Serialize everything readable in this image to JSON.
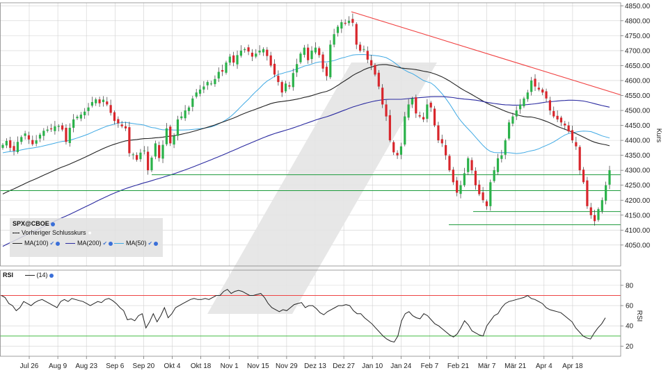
{
  "legend": {
    "symbol": "SPX@CBOE",
    "prev_close": "Vorheriger Schlusskurs",
    "ma100": "MA(100)",
    "ma200": "MA(200)",
    "ma50": "MA(50)",
    "rsi": "RSI",
    "rsi_period": "(14)"
  },
  "colors": {
    "up": "#2bb24a",
    "down": "#d8262c",
    "ma100": "#222222",
    "ma200": "#2a2aa0",
    "ma50": "#3fa9e4",
    "trend": "#f04040",
    "support": "#1a9a3a",
    "rsi_line": "#222222",
    "rsi_upper": "#ee4444",
    "rsi_lower": "#44bb44",
    "grid": "#d0d0d0",
    "watermark": "#e4e4e4"
  },
  "chart_data": [
    {
      "type": "candlestick",
      "ylabel": "Kurs",
      "ylim": [
        3980,
        4860
      ],
      "yticks": [
        "4050.00",
        "4100.00",
        "4150.00",
        "4200.00",
        "4250.00",
        "4300.00",
        "4350.00",
        "4400.00",
        "4450.00",
        "4500.00",
        "4550.00",
        "4600.00",
        "4650.00",
        "4700.00",
        "4750.00",
        "4800.00",
        "4850.00"
      ],
      "xticks": [
        "Jul 26",
        "Aug 9",
        "Aug 23",
        "Sep 6",
        "Sep 20",
        "Okt 4",
        "Okt 18",
        "Nov 1",
        "Nov 15",
        "Nov 29",
        "Dez 13",
        "Dez 27",
        "Jan 10",
        "Jan 24",
        "Feb 7",
        "Feb 21",
        "Mär 7",
        "Mär 21",
        "Apr 4",
        "Apr 18"
      ],
      "close_series": [
        4385,
        4398,
        4375,
        4365,
        4395,
        4411,
        4423,
        4403,
        4387,
        4400,
        4419,
        4432,
        4436,
        4437,
        4447,
        4448,
        4436,
        4395,
        4442,
        4470,
        4479,
        4486,
        4496,
        4510,
        4528,
        4537,
        4524,
        4536,
        4520,
        4492,
        4465,
        4457,
        4447,
        4440,
        4357,
        4353,
        4335,
        4359,
        4366,
        4300,
        4342,
        4390,
        4341,
        4385,
        4440,
        4390,
        4415,
        4470,
        4480,
        4500,
        4510,
        4540,
        4560,
        4570,
        4580,
        4595,
        4590,
        4605,
        4629,
        4630,
        4660,
        4680,
        4660,
        4685,
        4700,
        4705,
        4697,
        4680,
        4690,
        4700,
        4705,
        4682,
        4650,
        4620,
        4595,
        4560,
        4590,
        4580,
        4625,
        4655,
        4690,
        4710,
        4668,
        4700,
        4710,
        4685,
        4640,
        4615,
        4720,
        4755,
        4780,
        4795,
        4790,
        4800,
        4793,
        4720,
        4700,
        4705,
        4670,
        4650,
        4620,
        4580,
        4520,
        4480,
        4400,
        4360,
        4350,
        4380,
        4480,
        4520,
        4540,
        4490,
        4480,
        4470,
        4520,
        4510,
        4450,
        4400,
        4390,
        4350,
        4300,
        4260,
        4225,
        4250,
        4290,
        4340,
        4300,
        4250,
        4220,
        4200,
        4180,
        4260,
        4300,
        4340,
        4350,
        4400,
        4460,
        4480,
        4500,
        4520,
        4540,
        4560,
        4600,
        4580,
        4570,
        4560,
        4540,
        4500,
        4480,
        4470,
        4460,
        4450,
        4430,
        4400,
        4380,
        4300,
        4260,
        4180,
        4150,
        4130,
        4170,
        4200,
        4250,
        4300
      ],
      "series": [
        {
          "name": "MA(100)"
        },
        {
          "name": "MA(200)"
        },
        {
          "name": "MA(50)"
        }
      ],
      "trendline": {
        "from": [
          "Dez 27",
          4830
        ],
        "to": [
          "Apr 18+",
          4550
        ]
      },
      "support_levels": [
        4285,
        4232,
        4162,
        4118
      ]
    },
    {
      "type": "line",
      "name": "RSI",
      "ylabel": "RSI",
      "ylim": [
        10,
        95
      ],
      "yticks": [
        "20",
        "40",
        "60",
        "80"
      ],
      "levels": [
        70,
        30
      ],
      "values": [
        70,
        68,
        62,
        60,
        55,
        58,
        64,
        62,
        60,
        63,
        65,
        66,
        64,
        62,
        60,
        58,
        64,
        66,
        64,
        67,
        66,
        65,
        64,
        62,
        60,
        62,
        64,
        63,
        66,
        67,
        65,
        62,
        58,
        55,
        46,
        47,
        45,
        50,
        52,
        38,
        44,
        52,
        44,
        50,
        58,
        48,
        52,
        58,
        60,
        62,
        64,
        66,
        67,
        66,
        66,
        67,
        66,
        68,
        70,
        70,
        74,
        76,
        72,
        74,
        75,
        74,
        72,
        70,
        70,
        71,
        72,
        68,
        62,
        58,
        56,
        54,
        56,
        55,
        58,
        61,
        62,
        63,
        58,
        60,
        60,
        57,
        53,
        51,
        54,
        56,
        58,
        60,
        60,
        61,
        60,
        55,
        52,
        52,
        48,
        45,
        42,
        38,
        34,
        30,
        27,
        25,
        24,
        30,
        45,
        52,
        54,
        50,
        48,
        47,
        52,
        50,
        46,
        42,
        40,
        37,
        34,
        31,
        29,
        32,
        38,
        45,
        41,
        35,
        33,
        31,
        30,
        40,
        45,
        50,
        52,
        58,
        62,
        64,
        65,
        66,
        67,
        68,
        70,
        67,
        66,
        64,
        62,
        58,
        56,
        55,
        54,
        53,
        50,
        47,
        44,
        38,
        34,
        30,
        28,
        27,
        33,
        38,
        42,
        48
      ]
    }
  ]
}
